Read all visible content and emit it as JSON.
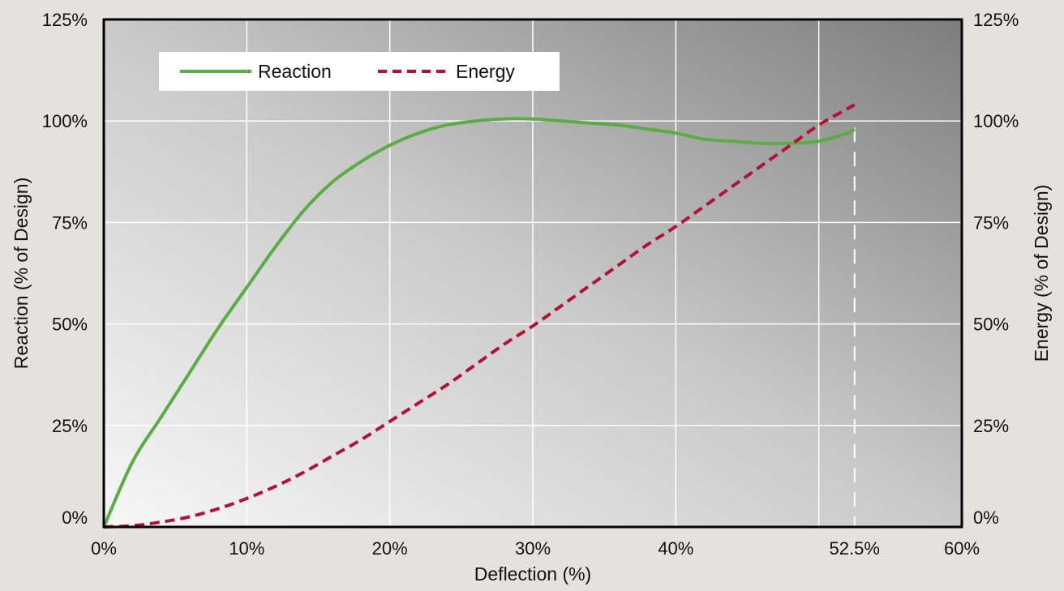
{
  "chart_data": {
    "type": "line",
    "title": "",
    "xlabel": "Deflection (%)",
    "ylabel": "Reaction (% of Design)",
    "y2label": "Energy (% of Design)",
    "xlim": [
      0,
      60
    ],
    "ylim": [
      0,
      125
    ],
    "y2lim": [
      0,
      125
    ],
    "x_ticks": [
      0,
      10,
      20,
      30,
      40,
      52.5,
      60
    ],
    "x_tick_labels": [
      "0%",
      "10%",
      "20%",
      "30%",
      "40%",
      "52.5%",
      "60%"
    ],
    "y_ticks": [
      0,
      25,
      50,
      75,
      100,
      125
    ],
    "y_tick_labels": [
      "0%",
      "25%",
      "50%",
      "75%",
      "100%",
      "125%"
    ],
    "y2_ticks": [
      0,
      25,
      50,
      75,
      100,
      125
    ],
    "y2_tick_labels": [
      "0%",
      "25%",
      "50%",
      "75%",
      "100%",
      "125%"
    ],
    "grid": true,
    "grid_x_extra": [
      50
    ],
    "legend_placement": "top-left",
    "reference_line": {
      "x": 52.5,
      "style": "dashed",
      "color": "#ffffff"
    },
    "series": [
      {
        "name": "Reaction",
        "axis": "left",
        "style": "solid",
        "color": "#5aac44",
        "x": [
          0,
          2,
          4,
          6,
          8,
          10,
          12,
          14,
          16,
          18,
          20,
          22,
          24,
          26,
          28,
          30,
          32,
          34,
          36,
          38,
          40,
          42,
          44,
          46,
          48,
          50,
          52,
          52.5
        ],
        "y": [
          0,
          16,
          27,
          38,
          49,
          59,
          69,
          78,
          85,
          90,
          94,
          97,
          99,
          100,
          100.5,
          100.5,
          100,
          99.5,
          99,
          98,
          97,
          95.5,
          95,
          94.5,
          94.5,
          95,
          97,
          98
        ]
      },
      {
        "name": "Energy",
        "axis": "right",
        "style": "dashed",
        "color": "#b31237",
        "x": [
          0,
          2,
          4,
          6,
          8,
          10,
          12,
          14,
          16,
          18,
          20,
          22,
          24,
          26,
          28,
          30,
          32,
          34,
          36,
          38,
          40,
          42,
          44,
          46,
          48,
          50,
          52,
          52.5
        ],
        "y": [
          0,
          0.3,
          1.2,
          2.5,
          4.5,
          7,
          10,
          13.5,
          17.5,
          21.5,
          26,
          30.5,
          35,
          40,
          45,
          49.5,
          54.5,
          59.5,
          64.5,
          69.5,
          74,
          79,
          84,
          89,
          94,
          99,
          103,
          104
        ]
      }
    ]
  }
}
